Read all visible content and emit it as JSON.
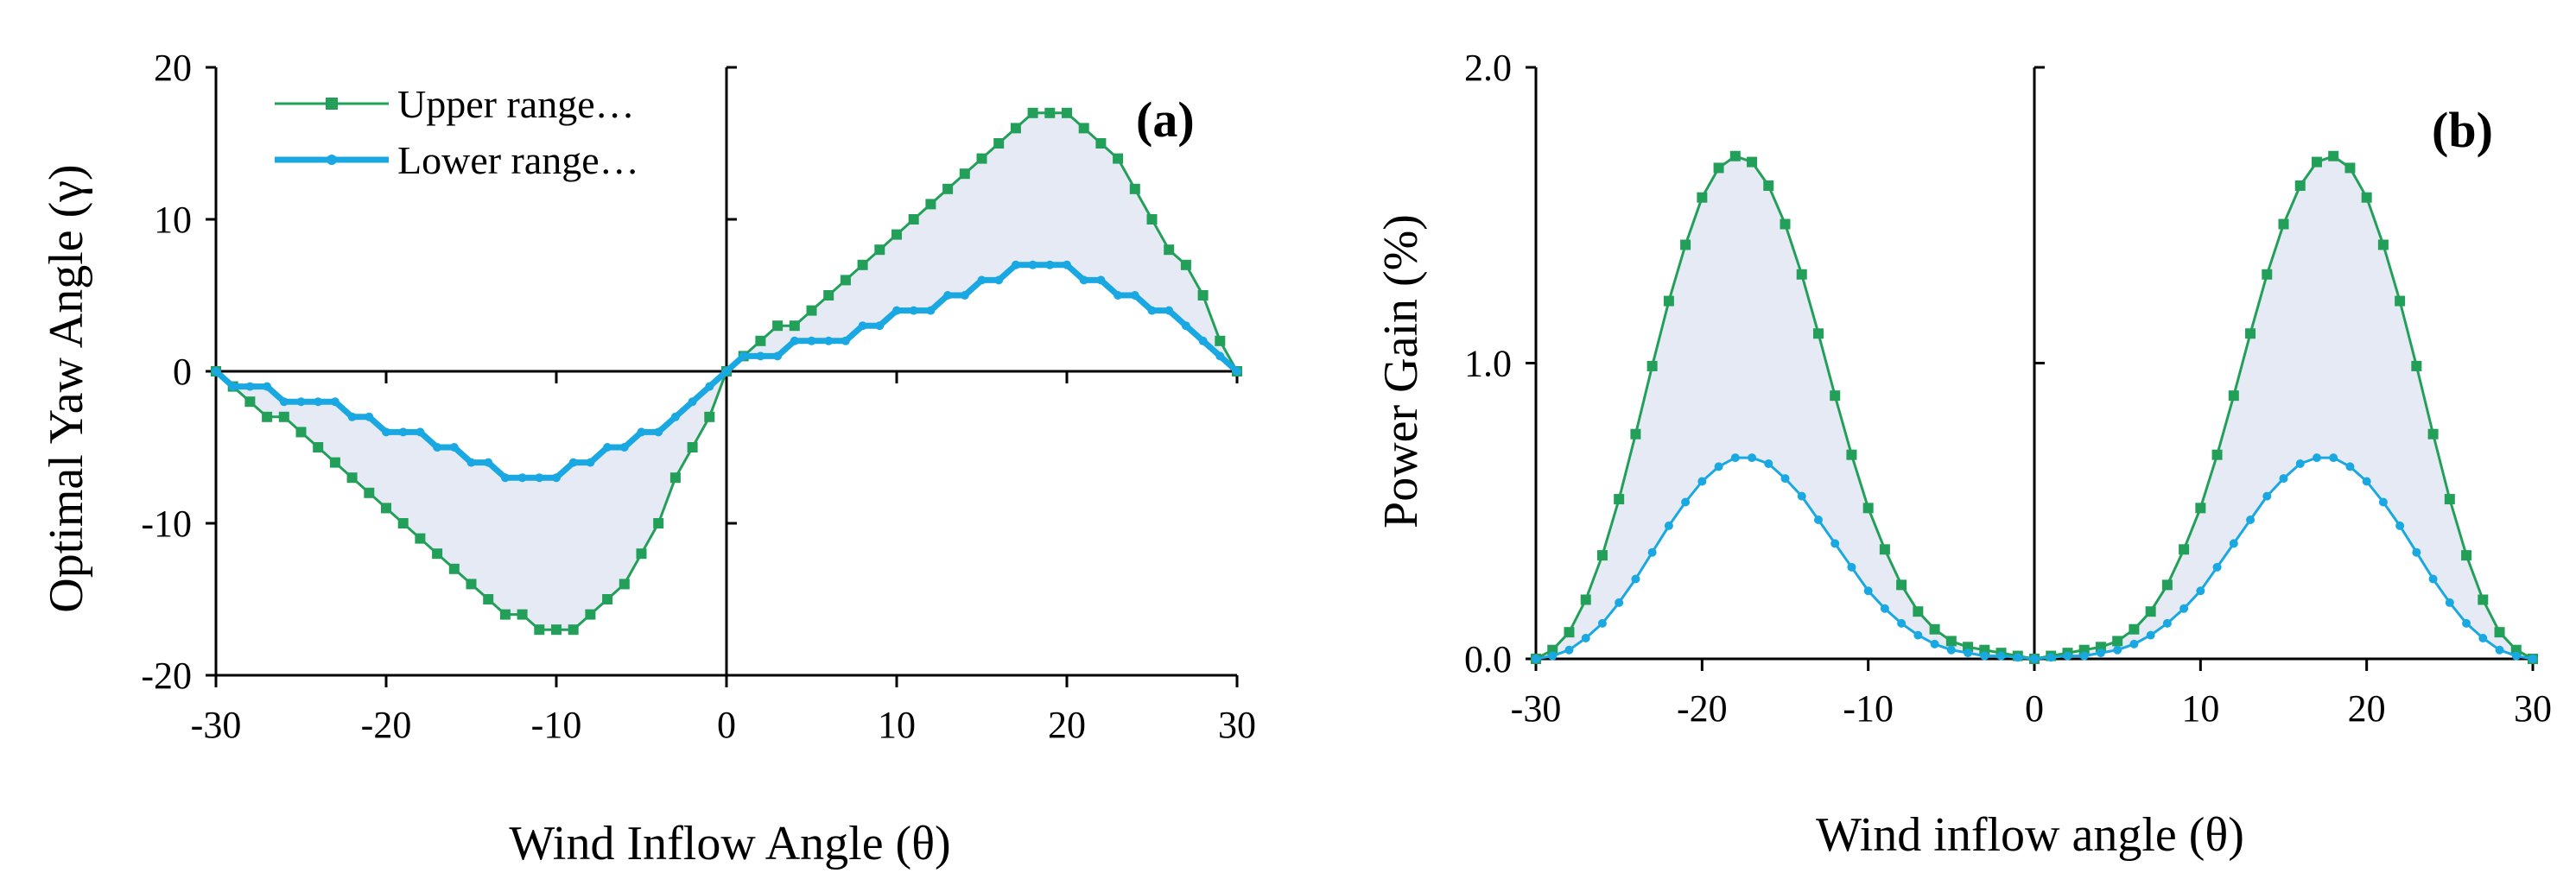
{
  "colors": {
    "upper": "#22a05a",
    "lower": "#19a8e2",
    "band": "#e6eaf4",
    "axis": "#000000"
  },
  "chart_data": [
    {
      "type": "line",
      "panel_label": "(a)",
      "xlabel": "Wind Inflow Angle (θ)",
      "ylabel": "Optimal Yaw Angle (γ)",
      "xlim": [
        -30,
        30
      ],
      "ylim": [
        -20,
        20
      ],
      "xticks": [
        "-30",
        "-20",
        "-10",
        "0",
        "10",
        "20",
        "30"
      ],
      "yticks": [
        "20",
        "10",
        "0",
        "-10",
        "-20"
      ],
      "legend": [
        "Upper range…",
        "Lower range…"
      ],
      "series": [
        {
          "name": "Upper range…",
          "x": [
            -30,
            -29,
            -28,
            -27,
            -26,
            -25,
            -24,
            -23,
            -22,
            -21,
            -20,
            -19,
            -18,
            -17,
            -16,
            -15,
            -14,
            -13,
            -12,
            -11,
            -10,
            -9,
            -8,
            -7,
            -6,
            -5,
            -4,
            -3,
            -2,
            -1,
            0,
            1,
            2,
            3,
            4,
            5,
            6,
            7,
            8,
            9,
            10,
            11,
            12,
            13,
            14,
            15,
            16,
            17,
            18,
            19,
            20,
            21,
            22,
            23,
            24,
            25,
            26,
            27,
            28,
            29,
            30
          ],
          "values": [
            0,
            -1,
            -2,
            -3,
            -3,
            -4,
            -5,
            -6,
            -7,
            -8,
            -9,
            -10,
            -11,
            -12,
            -13,
            -14,
            -15,
            -16,
            -16,
            -17,
            -17,
            -17,
            -16,
            -15,
            -14,
            -12,
            -10,
            -7,
            -5,
            -3,
            0,
            1,
            2,
            3,
            3,
            4,
            5,
            6,
            7,
            8,
            9,
            10,
            11,
            12,
            13,
            14,
            15,
            16,
            17,
            17,
            17,
            16,
            15,
            14,
            12,
            10,
            8,
            7,
            5,
            2,
            0
          ]
        },
        {
          "name": "Lower range…",
          "x": [
            -30,
            -29,
            -28,
            -27,
            -26,
            -25,
            -24,
            -23,
            -22,
            -21,
            -20,
            -19,
            -18,
            -17,
            -16,
            -15,
            -14,
            -13,
            -12,
            -11,
            -10,
            -9,
            -8,
            -7,
            -6,
            -5,
            -4,
            -3,
            -2,
            -1,
            0,
            1,
            2,
            3,
            4,
            5,
            6,
            7,
            8,
            9,
            10,
            11,
            12,
            13,
            14,
            15,
            16,
            17,
            18,
            19,
            20,
            21,
            22,
            23,
            24,
            25,
            26,
            27,
            28,
            29,
            30
          ],
          "values": [
            0,
            -1,
            -1,
            -1,
            -2,
            -2,
            -2,
            -2,
            -3,
            -3,
            -4,
            -4,
            -4,
            -5,
            -5,
            -6,
            -6,
            -7,
            -7,
            -7,
            -7,
            -6,
            -6,
            -5,
            -5,
            -4,
            -4,
            -3,
            -2,
            -1,
            0,
            1,
            1,
            1,
            2,
            2,
            2,
            2,
            3,
            3,
            4,
            4,
            4,
            5,
            5,
            6,
            6,
            7,
            7,
            7,
            7,
            6,
            6,
            5,
            5,
            4,
            4,
            3,
            2,
            1,
            0
          ]
        }
      ]
    },
    {
      "type": "line",
      "panel_label": "(b)",
      "xlabel": "Wind inflow angle (θ)",
      "ylabel": "Power Gain (%)",
      "xlim": [
        -30,
        30
      ],
      "ylim": [
        0,
        2
      ],
      "xticks": [
        "-30",
        "-20",
        "-10",
        "0",
        "10",
        "20",
        "30"
      ],
      "yticks": [
        "2.0",
        "1.0",
        "0.0"
      ],
      "series": [
        {
          "name": "Upper range…",
          "x": [
            -30,
            -29,
            -28,
            -27,
            -26,
            -25,
            -24,
            -23,
            -22,
            -21,
            -20,
            -19,
            -18,
            -17,
            -16,
            -15,
            -14,
            -13,
            -12,
            -11,
            -10,
            -9,
            -8,
            -7,
            -6,
            -5,
            -4,
            -3,
            -2,
            -1,
            0,
            1,
            2,
            3,
            4,
            5,
            6,
            7,
            8,
            9,
            10,
            11,
            12,
            13,
            14,
            15,
            16,
            17,
            18,
            19,
            20,
            21,
            22,
            23,
            24,
            25,
            26,
            27,
            28,
            29,
            30
          ],
          "values": [
            0,
            0.03,
            0.09,
            0.2,
            0.35,
            0.54,
            0.76,
            0.99,
            1.21,
            1.4,
            1.56,
            1.66,
            1.7,
            1.68,
            1.6,
            1.47,
            1.3,
            1.1,
            0.89,
            0.69,
            0.51,
            0.37,
            0.25,
            0.16,
            0.1,
            0.06,
            0.04,
            0.03,
            0.02,
            0.01,
            0,
            0.01,
            0.02,
            0.03,
            0.04,
            0.06,
            0.1,
            0.16,
            0.25,
            0.37,
            0.51,
            0.69,
            0.89,
            1.1,
            1.3,
            1.47,
            1.6,
            1.68,
            1.7,
            1.66,
            1.56,
            1.4,
            1.21,
            0.99,
            0.76,
            0.54,
            0.35,
            0.2,
            0.09,
            0.03,
            0
          ]
        },
        {
          "name": "Lower range…",
          "x": [
            -30,
            -29,
            -28,
            -27,
            -26,
            -25,
            -24,
            -23,
            -22,
            -21,
            -20,
            -19,
            -18,
            -17,
            -16,
            -15,
            -14,
            -13,
            -12,
            -11,
            -10,
            -9,
            -8,
            -7,
            -6,
            -5,
            -4,
            -3,
            -2,
            -1,
            0,
            1,
            2,
            3,
            4,
            5,
            6,
            7,
            8,
            9,
            10,
            11,
            12,
            13,
            14,
            15,
            16,
            17,
            18,
            19,
            20,
            21,
            22,
            23,
            24,
            25,
            26,
            27,
            28,
            29,
            30
          ],
          "values": [
            0,
            0.01,
            0.03,
            0.07,
            0.12,
            0.19,
            0.27,
            0.36,
            0.45,
            0.53,
            0.6,
            0.65,
            0.68,
            0.68,
            0.66,
            0.61,
            0.55,
            0.47,
            0.39,
            0.31,
            0.23,
            0.17,
            0.12,
            0.08,
            0.05,
            0.03,
            0.02,
            0.01,
            0.01,
            0.005,
            0,
            0.005,
            0.01,
            0.01,
            0.02,
            0.03,
            0.05,
            0.08,
            0.12,
            0.17,
            0.23,
            0.31,
            0.39,
            0.47,
            0.55,
            0.61,
            0.66,
            0.68,
            0.68,
            0.65,
            0.6,
            0.53,
            0.45,
            0.36,
            0.27,
            0.19,
            0.12,
            0.07,
            0.03,
            0.01,
            0
          ]
        }
      ]
    }
  ]
}
